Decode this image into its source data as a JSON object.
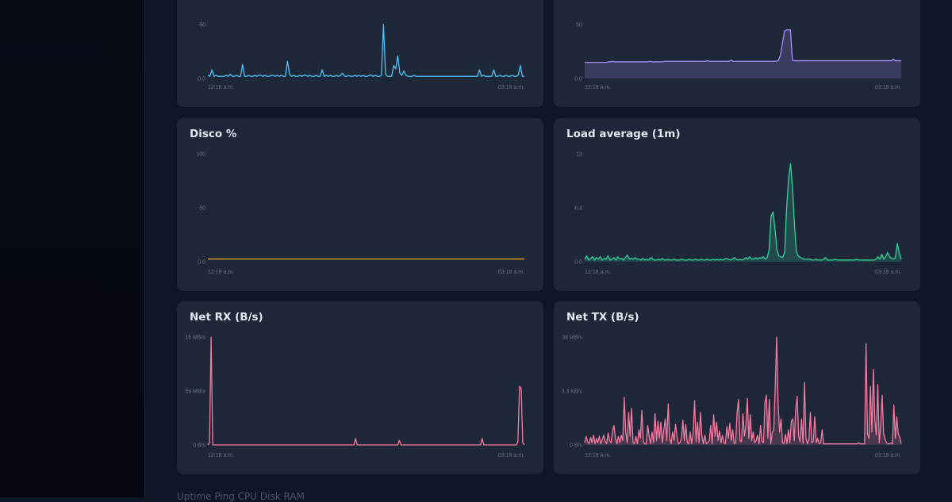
{
  "colors": {
    "background": "#0f1626",
    "card": "#1f2839",
    "sidebar": "#060912"
  },
  "charts": [
    {
      "id": "cpu",
      "title": "",
      "color": "#4fc3f7",
      "fill": false,
      "yticks": [
        "50",
        "0.0"
      ],
      "xticks": [
        "12:18 a.m.",
        "03:18 a.m."
      ],
      "chart_data": {
        "type": "line",
        "title": "",
        "x_range": [
          "12:18 a.m.",
          "03:18 a.m."
        ],
        "ylim": [
          0,
          50
        ],
        "values": [
          3,
          2,
          8,
          2,
          3,
          2,
          2,
          2,
          2,
          3,
          2,
          4,
          2,
          2,
          3,
          2,
          2,
          13,
          2,
          2,
          3,
          2,
          2,
          3,
          2,
          3,
          3,
          2,
          3,
          2,
          2,
          3,
          3,
          2,
          3,
          2,
          3,
          2,
          2,
          16,
          4,
          2,
          3,
          2,
          2,
          3,
          2,
          3,
          3,
          2,
          3,
          2,
          2,
          3,
          2,
          2,
          8,
          2,
          3,
          2,
          3,
          2,
          2,
          3,
          2,
          3,
          5,
          2,
          2,
          3,
          2,
          2,
          3,
          2,
          3,
          2,
          3,
          2,
          2,
          3,
          3,
          2,
          3,
          2,
          2,
          3,
          50,
          4,
          2,
          2,
          2,
          12,
          9,
          21,
          5,
          3,
          7,
          3,
          2,
          2,
          2,
          3,
          2,
          2,
          2,
          2,
          2,
          2,
          2,
          2,
          2,
          2,
          2,
          2,
          2,
          2,
          2,
          2,
          2,
          2,
          2,
          2,
          2,
          2,
          2,
          2,
          2,
          2,
          2,
          2,
          2,
          2,
          2,
          8,
          2,
          3,
          2,
          2,
          2,
          2,
          8,
          2,
          2,
          3,
          2,
          2,
          3,
          2,
          2,
          3,
          2,
          2,
          3,
          12,
          2,
          2
        ]
      }
    },
    {
      "id": "memory",
      "title": "",
      "color": "#a78bfa",
      "fill": true,
      "yticks": [
        "50",
        "0.0"
      ],
      "xticks": [
        "12:18 a.m.",
        "03:18 a.m."
      ],
      "chart_data": {
        "type": "area",
        "title": "",
        "x_range": [
          "12:18 a.m.",
          "03:18 a.m."
        ],
        "ylim": [
          0,
          50
        ],
        "values": [
          15,
          15,
          15,
          15,
          15,
          15,
          15,
          15,
          15,
          15,
          15,
          15,
          15.5,
          15.5,
          16,
          15.5,
          15.5,
          15.5,
          15.5,
          15.5,
          15.5,
          15.5,
          15.5,
          15.5,
          15.5,
          15.5,
          15.5,
          15.5,
          15.5,
          15.5,
          15.5,
          15.5,
          15.5,
          16,
          15.5,
          15.5,
          15.5,
          15.5,
          15.5,
          15.5,
          16,
          16,
          16,
          16,
          16,
          16,
          16,
          16,
          16,
          16,
          16,
          16,
          16,
          16,
          16,
          16,
          16,
          16,
          16,
          16,
          16,
          16,
          16.5,
          16,
          16,
          16,
          16,
          16,
          16,
          16,
          16,
          16,
          16,
          16,
          17,
          16,
          16,
          16,
          16,
          16,
          16,
          16,
          16,
          16,
          16,
          16,
          16,
          16,
          16,
          16,
          16,
          16,
          16,
          16,
          16,
          16,
          16,
          16,
          17,
          22,
          33,
          44,
          45,
          45,
          45,
          17,
          16.5,
          16.5,
          16.5,
          16.5,
          16.5,
          16.5,
          16.5,
          16.5,
          16.5,
          16.5,
          16.5,
          16.5,
          16.5,
          16.5,
          16.5,
          16.5,
          16.5,
          16.5,
          16.5,
          16.5,
          16.5,
          16.5,
          16.5,
          16.5,
          16.5,
          16.5,
          16.5,
          16.5,
          16.5,
          16.5,
          16.5,
          16.5,
          16.5,
          16.5,
          16.5,
          16.5,
          16.5,
          16.5,
          16.5,
          16.5,
          16.5,
          16.5,
          16.5,
          16.5,
          16.5,
          16.5,
          16.5,
          16.5,
          16.5,
          16.5,
          18,
          16.5,
          16.5,
          16.5,
          16.5
        ]
      }
    },
    {
      "id": "disk",
      "title": "Disco %",
      "color": "#f5a623",
      "fill": false,
      "yticks": [
        "100",
        "50",
        "0.0"
      ],
      "xticks": [
        "12:18 a.m.",
        "03:18 a.m."
      ],
      "chart_data": {
        "type": "line",
        "title": "Disco %",
        "x_range": [
          "12:18 a.m.",
          "03:18 a.m."
        ],
        "ylim": [
          0,
          100
        ],
        "values": [
          2.5,
          2.5,
          2.5,
          2.5,
          2.5,
          2.5,
          2.5,
          2.5,
          2.5,
          2.5,
          2.5,
          2.5,
          2.5,
          2.5,
          2.5,
          2.5,
          2.5,
          2.5,
          2.5,
          2.5
        ]
      }
    },
    {
      "id": "load",
      "title": "Load average (1m)",
      "color": "#34d399",
      "fill": true,
      "yticks": [
        "13",
        "6.4",
        "0.0"
      ],
      "xticks": [
        "12:18 a.m.",
        "03:18 a.m."
      ],
      "chart_data": {
        "type": "area",
        "title": "Load average (1m)",
        "x_range": [
          "12:18 a.m.",
          "03:18 a.m."
        ],
        "ylim": [
          0,
          13
        ],
        "values": [
          0.3,
          0.7,
          0.2,
          0.4,
          0.6,
          0.2,
          0.5,
          0.3,
          0.6,
          0.2,
          0.4,
          0.3,
          0.7,
          0.2,
          0.3,
          0.5,
          0.2,
          0.6,
          0.3,
          0.4,
          0.2,
          0.5,
          0.8,
          0.3,
          0.4,
          0.3,
          0.5,
          0.3,
          0.3,
          0.2,
          0.4,
          0.2,
          0.3,
          0.2,
          0.5,
          0.3,
          0.2,
          0.2,
          0.3,
          0.2,
          0.4,
          0.2,
          0.2,
          0.3,
          0.2,
          0.2,
          0.3,
          0.2,
          0.2,
          0.2,
          0.3,
          0.2,
          0.2,
          0.2,
          0.3,
          0.2,
          0.2,
          0.3,
          0.2,
          0.2,
          0.3,
          0.2,
          0.2,
          0.3,
          0.2,
          0.2,
          0.3,
          0.2,
          0.3,
          0.2,
          0.3,
          0.2,
          0.3,
          0.4,
          0.3,
          0.2,
          0.3,
          0.5,
          0.3,
          0.2,
          0.3,
          0.2,
          0.3,
          0.5,
          0.3,
          0.6,
          0.3,
          0.3,
          0.5,
          0.3,
          0.5,
          0.4,
          0.6,
          0.3,
          0.5,
          1.5,
          5.5,
          6,
          4,
          1.4,
          0.7,
          0.6,
          0.5,
          1.2,
          6.5,
          10,
          11.8,
          9,
          4.5,
          1.2,
          0.7,
          0.5,
          0.4,
          0.3,
          0.3,
          0.3,
          0.3,
          0.2,
          0.2,
          0.3,
          0.2,
          0.2,
          0.2,
          0.3,
          0.5,
          0.2,
          0.2,
          0.2,
          0.2,
          0.3,
          0.2,
          0.2,
          0.2,
          0.2,
          0.2,
          0.2,
          0.2,
          0.2,
          0.2,
          0.2,
          0.3,
          0.2,
          0.2,
          0.2,
          0.2,
          0.2,
          0.2,
          0.2,
          0.2,
          0.2,
          0.3,
          0.6,
          0.3,
          0.9,
          0.3,
          0.6,
          1.1,
          0.6,
          0.4,
          0.3,
          0.5,
          2.2,
          1,
          0.3
        ]
      }
    },
    {
      "id": "netrx",
      "title": "Net RX (B/s)",
      "color": "#f57aa0",
      "fill": false,
      "yticks": [
        "18 MB/s",
        "59 MB/s",
        "0 B/s"
      ],
      "xticks": [
        "12:18 a.m.",
        "03:18 a.m."
      ],
      "chart_data": {
        "type": "line",
        "title": "Net RX (B/s)",
        "x_range": [
          "12:18 a.m.",
          "03:18 a.m."
        ],
        "y_ticks": [
          "0 B/s",
          "59 MB/s",
          "18 MB/s"
        ],
        "ylim": [
          0,
          118
        ],
        "values": [
          0,
          2,
          118,
          0,
          0,
          0,
          0,
          0,
          0,
          0,
          0,
          0,
          0,
          0,
          0,
          0,
          0,
          0,
          0,
          0,
          0,
          0,
          0,
          0,
          0,
          0,
          0,
          0,
          0,
          0,
          0,
          0,
          0,
          0,
          0,
          0,
          0,
          0,
          0,
          0,
          0,
          0,
          0,
          0,
          0,
          0,
          0,
          0,
          0,
          0,
          0,
          0,
          0,
          0,
          0,
          0,
          0,
          0,
          0,
          0,
          0,
          0,
          0,
          0,
          0,
          0,
          0,
          0,
          0,
          0,
          0,
          0,
          0,
          0,
          0,
          0,
          0,
          0,
          0,
          0,
          0,
          0,
          0,
          0,
          0,
          0,
          0,
          0,
          0,
          0,
          0,
          7,
          0,
          0,
          0,
          0,
          0,
          0,
          0,
          0,
          0,
          0,
          0,
          0,
          0,
          0,
          0,
          0,
          0,
          0,
          0,
          0,
          0,
          0,
          0,
          0,
          0,
          0,
          5,
          0,
          0,
          0,
          0,
          0,
          0,
          0,
          0,
          0,
          0,
          0,
          0,
          0,
          0,
          0,
          0,
          0,
          0,
          0,
          0,
          0,
          0,
          0,
          0,
          0,
          0,
          0,
          0,
          0,
          0,
          0,
          0,
          0,
          0,
          0,
          0,
          0,
          0,
          0,
          0,
          0,
          0,
          0,
          0,
          0,
          0,
          0,
          0,
          0,
          0,
          7,
          0,
          0,
          0,
          0,
          0,
          0,
          0,
          0,
          0,
          0,
          0,
          0,
          0,
          0,
          0,
          0,
          0,
          0,
          0,
          0,
          0,
          3,
          64,
          62,
          2,
          0
        ]
      }
    },
    {
      "id": "nettx",
      "title": "Net TX (B/s)",
      "color": "#f57aa0",
      "fill": true,
      "yticks": [
        "34 MB/s",
        "3.3 KB/s",
        "0 B/s"
      ],
      "xticks": [
        "12:18 a.m.",
        "03:18 a.m."
      ],
      "chart_data": {
        "type": "area",
        "title": "Net TX (B/s)",
        "x_range": [
          "12:18 a.m.",
          "03:18 a.m."
        ],
        "y_ticks": [
          "0 B/s",
          "3.3 KB/s",
          "34 MB/s"
        ],
        "ylim": [
          0,
          100
        ],
        "values": [
          2,
          8,
          3,
          1,
          7,
          2,
          9,
          1,
          6,
          2,
          8,
          1,
          5,
          9,
          3,
          1,
          11,
          4,
          2,
          13,
          18,
          6,
          1,
          8,
          2,
          9,
          4,
          44,
          12,
          2,
          30,
          8,
          34,
          2,
          1,
          8,
          1,
          14,
          6,
          32,
          3,
          1,
          1,
          18,
          8,
          1,
          12,
          2,
          29,
          4,
          22,
          6,
          21,
          2,
          14,
          24,
          4,
          38,
          6,
          1,
          12,
          4,
          19,
          8,
          1,
          2,
          6,
          23,
          4,
          19,
          2,
          1,
          12,
          1,
          11,
          41,
          3,
          21,
          2,
          30,
          8,
          1,
          9,
          1,
          2,
          4,
          18,
          1,
          28,
          8,
          21,
          4,
          13,
          2,
          9,
          2,
          1,
          17,
          6,
          20,
          4,
          14,
          1,
          2,
          30,
          42,
          4,
          3,
          29,
          8,
          18,
          43,
          6,
          28,
          4,
          12,
          2,
          4,
          9,
          1,
          18,
          3,
          2,
          39,
          46,
          6,
          42,
          1,
          12,
          14,
          52,
          100,
          38,
          12,
          24,
          2,
          1,
          10,
          1,
          14,
          2,
          22,
          24,
          4,
          33,
          45,
          8,
          3,
          24,
          1,
          58,
          6,
          1,
          5,
          30,
          2,
          3,
          26,
          2,
          6,
          1,
          2,
          14,
          1,
          1,
          1,
          1,
          1,
          1,
          1,
          1,
          1,
          1,
          1,
          1,
          1,
          1,
          1,
          1,
          1,
          1,
          1,
          1,
          1,
          1,
          1,
          1,
          2,
          1,
          1,
          1,
          1,
          94,
          10,
          6,
          54,
          12,
          70,
          22,
          9,
          56,
          2,
          18,
          46,
          10,
          5,
          2,
          1,
          1,
          2,
          1,
          37,
          6,
          26,
          10,
          7,
          1
        ]
      }
    }
  ],
  "footer_peek": "Uptime   Ping   CPU   Disk   RAM"
}
